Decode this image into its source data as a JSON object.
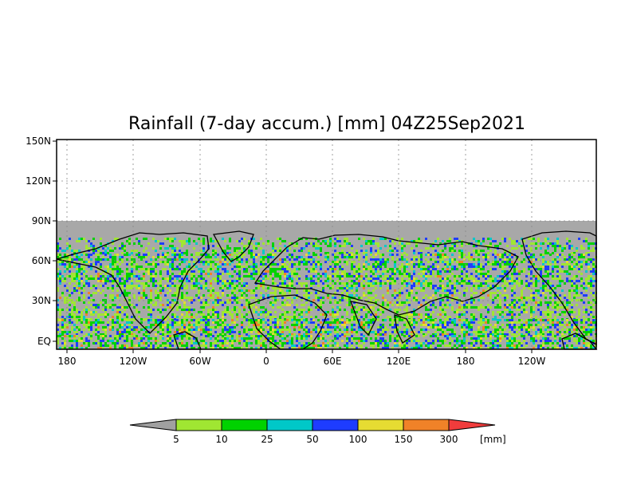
{
  "title": "Rainfall (7-day accum.) [mm] 04Z25Sep2021",
  "lat_labels": [
    "150N",
    "120N",
    "90N",
    "60N",
    "30N",
    "EQ"
  ],
  "lon_labels": [
    "180",
    "120W",
    "60W",
    "0",
    "60E",
    "120E",
    "180",
    "120W"
  ],
  "colorbar": {
    "labels": [
      "5",
      "10",
      "25",
      "50",
      "100",
      "150",
      "300"
    ],
    "unit": "[mm]",
    "colors": [
      "#a0a0a0",
      "#a0e632",
      "#00d200",
      "#00c8c8",
      "#1e3cff",
      "#e6dc32",
      "#f08228",
      "#f03c3c"
    ]
  },
  "map": {
    "land_fill": "#a8a8a8",
    "no_data_fill": "#a8a8a8"
  }
}
